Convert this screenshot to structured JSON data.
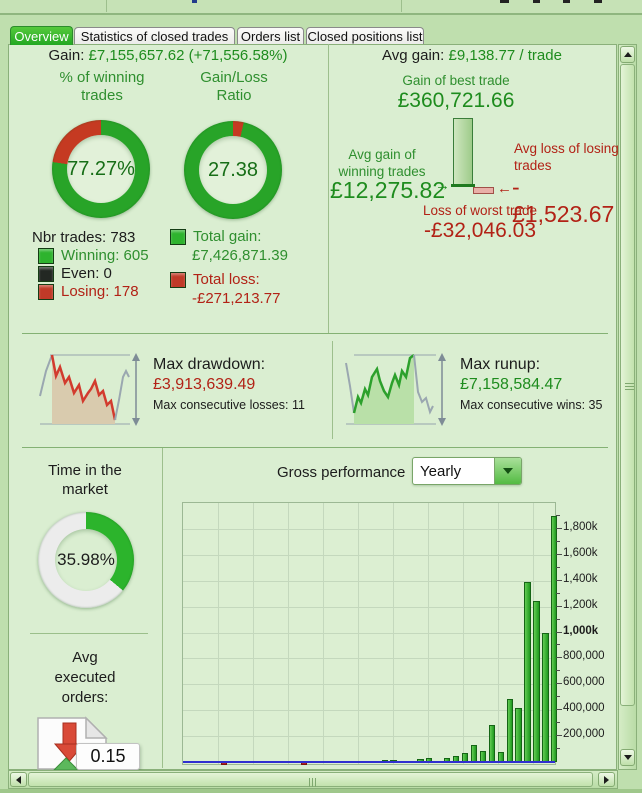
{
  "tabs": {
    "items": [
      {
        "label": "Overview",
        "active": true
      },
      {
        "label": "Statistics of closed trades",
        "active": false
      },
      {
        "label": "Orders list",
        "active": false
      },
      {
        "label": "Closed positions list",
        "active": false
      }
    ]
  },
  "summary": {
    "gain_label": "Gain:",
    "gain_value": "£7,155,657.62 (+71,556.58%)",
    "avg_gain_label": "Avg gain:",
    "avg_gain_value": "£9,138.77 / trade"
  },
  "donuts": {
    "winning": {
      "title_line1": "% of winning",
      "title_line2": "trades",
      "value": "77.27%",
      "green_pct": 77.27
    },
    "ratio": {
      "title_line1": "Gain/Loss",
      "title_line2": "Ratio",
      "value": "27.38",
      "red_pct": 3.52
    },
    "time": {
      "title_line1": "Time in the",
      "title_line2": "market",
      "value": "35.98%",
      "green_pct": 35.98
    }
  },
  "trade_counts": {
    "total": "Nbr trades: 783",
    "rows": [
      {
        "label": "Winning: 605",
        "square_color": "#2eb32e",
        "text_color": "#2f8f2f"
      },
      {
        "label": "Even: 0",
        "square_color": "#232823",
        "text_color": "#1c1c1c"
      },
      {
        "label": "Losing: 178",
        "square_color": "#c03a28",
        "text_color": "#b22216"
      }
    ]
  },
  "totals": {
    "gain_label": "Total gain:",
    "gain_value": "£7,426,871.39",
    "gain_square_color": "#2eb32e",
    "loss_label": "Total loss:",
    "loss_value": "-£271,213.77",
    "loss_square_color": "#c03a28"
  },
  "best_worst": {
    "best_label": "Gain of best trade",
    "best_value": "£360,721.66",
    "avg_win_label_1": "Avg gain of",
    "avg_win_label_2": "winning trades",
    "avg_win_value": "£12,275.82",
    "avg_win_arrow": "→",
    "avg_loss_label_1": "Avg loss of losing",
    "avg_loss_label_2": "trades",
    "avg_loss_value": "-£1,523.67",
    "avg_loss_arrow": "←",
    "worst_label": "Loss of worst trade",
    "worst_value": "-£32,046.03"
  },
  "drawdown": {
    "title": "Max drawdown:",
    "value": "£3,913,639.49",
    "sub": "Max consecutive losses: 11"
  },
  "runup": {
    "title": "Max runup:",
    "value": "£7,158,584.47",
    "sub": "Max consecutive wins: 35"
  },
  "avg_orders": {
    "label_1": "Avg",
    "label_2": "executed",
    "label_3": "orders:",
    "value": "0.15"
  },
  "gross_performance": {
    "label": "Gross performance",
    "period": "Yearly"
  },
  "chart_data": {
    "type": "bar",
    "title": "Gross performance (Yearly)",
    "unit": "£",
    "ylim": [
      0,
      2000000
    ],
    "gridline_step": 200000,
    "legend": "none",
    "xlabel": "",
    "ylabel": "",
    "y_ticks": [
      {
        "label": "1,800k",
        "value": 1800000,
        "bold": false
      },
      {
        "label": "1,600k",
        "value": 1600000,
        "bold": false
      },
      {
        "label": "1,400k",
        "value": 1400000,
        "bold": false
      },
      {
        "label": "1,200k",
        "value": 1200000,
        "bold": false
      },
      {
        "label": "1,000k",
        "value": 1000000,
        "bold": true
      },
      {
        "label": "800,000",
        "value": 800000,
        "bold": false
      },
      {
        "label": "600,000",
        "value": 600000,
        "bold": false
      },
      {
        "label": "400,000",
        "value": 400000,
        "bold": false
      },
      {
        "label": "200,000",
        "value": 200000,
        "bold": false
      }
    ],
    "series": [
      {
        "name": "Gross performance per period",
        "values": [
          0,
          0,
          0,
          0,
          -8000,
          0,
          0,
          0,
          0,
          0,
          0,
          0,
          0,
          -8000,
          0,
          0,
          0,
          0,
          0,
          0,
          0,
          0,
          13000,
          15000,
          0,
          0,
          25000,
          28000,
          0,
          28000,
          46000,
          67000,
          130000,
          85000,
          287000,
          77000,
          490000,
          415000,
          1390000,
          1240000,
          1000000,
          1900000
        ]
      }
    ],
    "colors": {
      "positive_bar": "#2ea22e",
      "negative_bar": "#b22222",
      "baseline": "#2f2fd0"
    }
  },
  "colors": {
    "donut_green": "#28a428",
    "donut_red": "#c53a22",
    "donut_empty": "#ececec",
    "accent_green": "#1e8c1e",
    "accent_red": "#b22216"
  }
}
